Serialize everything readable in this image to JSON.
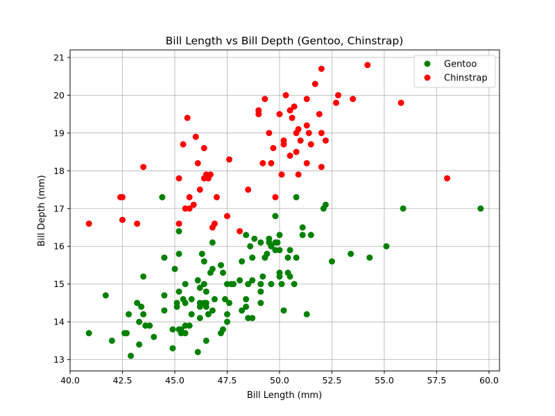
{
  "chart_data": {
    "type": "scatter",
    "title": "Bill Length vs Bill Depth (Gentoo, Chinstrap)",
    "xlabel": "Bill Length (mm)",
    "ylabel": "Bill Depth (mm)",
    "xlim": [
      40.0,
      60.5
    ],
    "ylim": [
      12.7,
      21.2
    ],
    "xticks": [
      40.0,
      42.5,
      45.0,
      47.5,
      50.0,
      52.5,
      55.0,
      57.5,
      60.0
    ],
    "xtick_labels": [
      "40.0",
      "42.5",
      "45.0",
      "47.5",
      "50.0",
      "52.5",
      "55.0",
      "57.5",
      "60.0"
    ],
    "yticks": [
      13,
      14,
      15,
      16,
      17,
      18,
      19,
      20,
      21
    ],
    "ytick_labels": [
      "13",
      "14",
      "15",
      "16",
      "17",
      "18",
      "19",
      "20",
      "21"
    ],
    "grid": true,
    "legend_position": "top-right",
    "series": [
      {
        "name": "Gentoo",
        "color": "#008000",
        "points": [
          [
            40.9,
            13.7
          ],
          [
            41.7,
            14.7
          ],
          [
            42.0,
            13.5
          ],
          [
            42.6,
            13.7
          ],
          [
            42.7,
            13.7
          ],
          [
            42.8,
            14.2
          ],
          [
            42.9,
            13.1
          ],
          [
            43.2,
            14.5
          ],
          [
            43.3,
            14.0
          ],
          [
            43.3,
            13.4
          ],
          [
            43.4,
            14.4
          ],
          [
            43.5,
            15.2
          ],
          [
            43.5,
            14.2
          ],
          [
            43.6,
            13.9
          ],
          [
            43.8,
            13.9
          ],
          [
            44.0,
            13.6
          ],
          [
            44.4,
            17.3
          ],
          [
            44.5,
            15.7
          ],
          [
            44.5,
            14.7
          ],
          [
            44.5,
            14.3
          ],
          [
            44.9,
            13.8
          ],
          [
            44.9,
            13.3
          ],
          [
            45.0,
            15.4
          ],
          [
            45.1,
            14.5
          ],
          [
            45.1,
            14.4
          ],
          [
            45.2,
            16.4
          ],
          [
            45.2,
            15.8
          ],
          [
            45.2,
            14.8
          ],
          [
            45.2,
            13.8
          ],
          [
            45.3,
            13.7
          ],
          [
            45.3,
            13.8
          ],
          [
            45.4,
            14.6
          ],
          [
            45.5,
            15.0
          ],
          [
            45.5,
            14.5
          ],
          [
            45.5,
            13.7
          ],
          [
            45.5,
            13.9
          ],
          [
            45.7,
            13.9
          ],
          [
            45.8,
            14.6
          ],
          [
            45.8,
            14.2
          ],
          [
            46.1,
            15.1
          ],
          [
            46.1,
            13.2
          ],
          [
            46.2,
            14.9
          ],
          [
            46.2,
            14.5
          ],
          [
            46.2,
            14.4
          ],
          [
            46.2,
            14.1
          ],
          [
            46.3,
            15.8
          ],
          [
            46.4,
            15.6
          ],
          [
            46.4,
            15.0
          ],
          [
            46.4,
            14.5
          ],
          [
            46.5,
            14.8
          ],
          [
            46.5,
            14.5
          ],
          [
            46.5,
            14.4
          ],
          [
            46.5,
            13.5
          ],
          [
            46.6,
            14.2
          ],
          [
            46.7,
            15.3
          ],
          [
            46.8,
            16.1
          ],
          [
            46.8,
            15.4
          ],
          [
            46.8,
            14.3
          ],
          [
            46.9,
            14.6
          ],
          [
            47.2,
            15.5
          ],
          [
            47.2,
            13.7
          ],
          [
            47.3,
            15.3
          ],
          [
            47.3,
            13.8
          ],
          [
            47.4,
            14.6
          ],
          [
            47.5,
            15.0
          ],
          [
            47.5,
            14.2
          ],
          [
            47.5,
            14.0
          ],
          [
            47.6,
            14.5
          ],
          [
            47.7,
            15.0
          ],
          [
            47.8,
            15.0
          ],
          [
            48.1,
            15.1
          ],
          [
            48.2,
            15.6
          ],
          [
            48.2,
            14.3
          ],
          [
            48.4,
            16.3
          ],
          [
            48.4,
            14.6
          ],
          [
            48.4,
            14.4
          ],
          [
            48.5,
            15.0
          ],
          [
            48.5,
            14.1
          ],
          [
            48.6,
            16.0
          ],
          [
            48.7,
            15.7
          ],
          [
            48.7,
            15.1
          ],
          [
            48.7,
            14.1
          ],
          [
            48.8,
            16.2
          ],
          [
            49.1,
            16.1
          ],
          [
            49.1,
            15.0
          ],
          [
            49.1,
            14.8
          ],
          [
            49.1,
            14.5
          ],
          [
            49.2,
            15.2
          ],
          [
            49.3,
            15.7
          ],
          [
            49.4,
            15.8
          ],
          [
            49.5,
            16.2
          ],
          [
            49.5,
            16.1
          ],
          [
            49.6,
            16.0
          ],
          [
            49.6,
            15.0
          ],
          [
            49.8,
            16.8
          ],
          [
            49.8,
            16.1
          ],
          [
            49.8,
            15.9
          ],
          [
            49.9,
            16.1
          ],
          [
            50.0,
            16.3
          ],
          [
            50.0,
            15.9
          ],
          [
            50.0,
            15.3
          ],
          [
            50.0,
            15.2
          ],
          [
            50.1,
            15.0
          ],
          [
            50.2,
            14.3
          ],
          [
            50.4,
            15.7
          ],
          [
            50.4,
            15.3
          ],
          [
            50.5,
            15.9
          ],
          [
            50.5,
            15.2
          ],
          [
            50.7,
            15.0
          ],
          [
            50.8,
            17.3
          ],
          [
            50.8,
            15.7
          ],
          [
            51.1,
            16.5
          ],
          [
            51.1,
            16.3
          ],
          [
            51.3,
            14.2
          ],
          [
            51.5,
            16.3
          ],
          [
            52.1,
            17.0
          ],
          [
            52.2,
            17.1
          ],
          [
            52.5,
            15.6
          ],
          [
            53.4,
            15.8
          ],
          [
            54.3,
            15.7
          ],
          [
            55.1,
            16.0
          ],
          [
            55.9,
            17.0
          ],
          [
            59.6,
            17.0
          ]
        ]
      },
      {
        "name": "Chinstrap",
        "color": "#ff0000",
        "points": [
          [
            40.9,
            16.6
          ],
          [
            42.4,
            17.3
          ],
          [
            42.5,
            17.3
          ],
          [
            42.5,
            16.7
          ],
          [
            43.2,
            16.6
          ],
          [
            43.5,
            18.1
          ],
          [
            45.2,
            17.8
          ],
          [
            45.2,
            16.6
          ],
          [
            45.4,
            18.7
          ],
          [
            45.5,
            17.0
          ],
          [
            45.6,
            19.4
          ],
          [
            45.7,
            17.3
          ],
          [
            45.7,
            17.0
          ],
          [
            45.9,
            17.1
          ],
          [
            46.0,
            18.9
          ],
          [
            46.1,
            18.2
          ],
          [
            46.2,
            17.5
          ],
          [
            46.4,
            18.6
          ],
          [
            46.4,
            17.8
          ],
          [
            46.5,
            17.9
          ],
          [
            46.6,
            17.8
          ],
          [
            46.7,
            17.9
          ],
          [
            46.8,
            16.5
          ],
          [
            46.9,
            16.6
          ],
          [
            47.0,
            17.3
          ],
          [
            47.5,
            16.8
          ],
          [
            47.6,
            18.3
          ],
          [
            48.1,
            16.4
          ],
          [
            48.5,
            17.5
          ],
          [
            49.0,
            19.6
          ],
          [
            49.0,
            19.5
          ],
          [
            49.2,
            18.2
          ],
          [
            49.3,
            19.9
          ],
          [
            49.5,
            19.0
          ],
          [
            49.6,
            18.2
          ],
          [
            49.7,
            18.6
          ],
          [
            49.8,
            17.3
          ],
          [
            50.0,
            19.5
          ],
          [
            50.1,
            17.9
          ],
          [
            50.2,
            18.8
          ],
          [
            50.2,
            18.7
          ],
          [
            50.3,
            20.0
          ],
          [
            50.5,
            19.6
          ],
          [
            50.5,
            18.4
          ],
          [
            50.6,
            19.4
          ],
          [
            50.7,
            19.7
          ],
          [
            50.8,
            18.5
          ],
          [
            50.8,
            19.0
          ],
          [
            50.9,
            17.9
          ],
          [
            50.9,
            19.1
          ],
          [
            51.0,
            18.8
          ],
          [
            51.3,
            19.9
          ],
          [
            51.3,
            19.2
          ],
          [
            51.3,
            18.2
          ],
          [
            51.4,
            19.0
          ],
          [
            51.5,
            18.7
          ],
          [
            51.7,
            20.3
          ],
          [
            51.9,
            19.5
          ],
          [
            52.0,
            20.7
          ],
          [
            52.0,
            19.0
          ],
          [
            52.0,
            18.1
          ],
          [
            52.2,
            18.8
          ],
          [
            52.7,
            19.8
          ],
          [
            52.8,
            20.0
          ],
          [
            53.5,
            19.9
          ],
          [
            54.2,
            20.8
          ],
          [
            55.8,
            19.8
          ],
          [
            58.0,
            17.8
          ]
        ]
      }
    ]
  }
}
